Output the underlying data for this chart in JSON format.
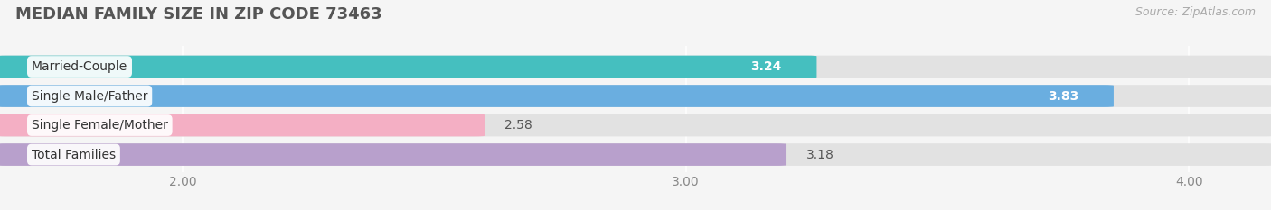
{
  "title": "MEDIAN FAMILY SIZE IN ZIP CODE 73463",
  "source": "Source: ZipAtlas.com",
  "categories": [
    "Married-Couple",
    "Single Male/Father",
    "Single Female/Mother",
    "Total Families"
  ],
  "values": [
    3.24,
    3.83,
    2.58,
    3.18
  ],
  "bar_colors": [
    "#45bfbf",
    "#6aaee0",
    "#f4afc4",
    "#b8a0cc"
  ],
  "value_in_bar": [
    true,
    true,
    false,
    false
  ],
  "xlim": [
    1.65,
    4.15
  ],
  "xmin": 1.65,
  "xmax": 4.15,
  "xticks": [
    2.0,
    3.0,
    4.0
  ],
  "xtick_labels": [
    "2.00",
    "3.00",
    "4.00"
  ],
  "bar_height": 0.72,
  "bar_gap": 0.28,
  "background_color": "#f5f5f5",
  "bar_bg_color": "#e2e2e2",
  "title_fontsize": 13,
  "source_fontsize": 9,
  "label_fontsize": 10,
  "value_fontsize": 10,
  "tick_fontsize": 10
}
